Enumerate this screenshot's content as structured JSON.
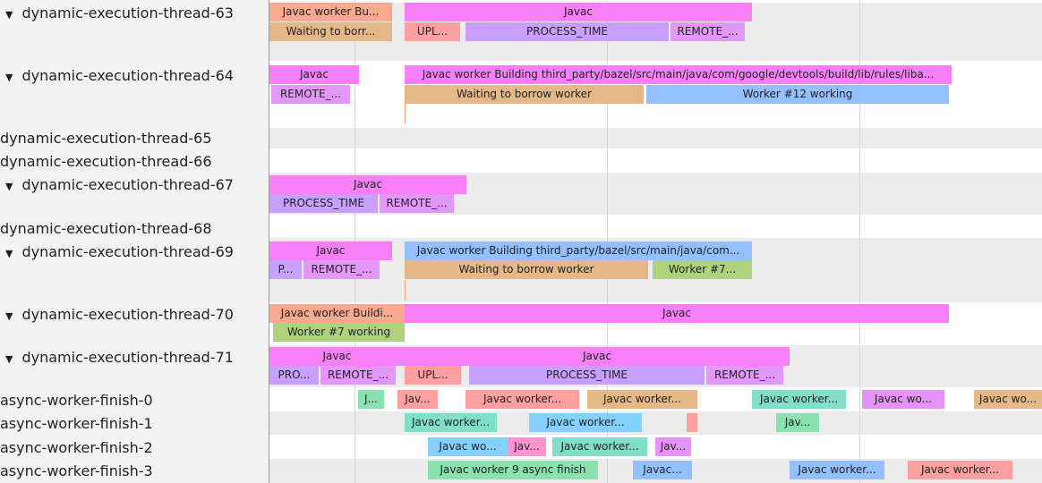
{
  "tracks": [
    {
      "label": "dynamic-execution-thread-63",
      "expanded": true
    },
    {
      "label": "dynamic-execution-thread-64",
      "expanded": true
    },
    {
      "label": "dynamic-execution-thread-65",
      "expanded": false
    },
    {
      "label": "dynamic-execution-thread-66",
      "expanded": false
    },
    {
      "label": "dynamic-execution-thread-67",
      "expanded": true
    },
    {
      "label": "dynamic-execution-thread-68",
      "expanded": false
    },
    {
      "label": "dynamic-execution-thread-69",
      "expanded": true
    },
    {
      "label": "dynamic-execution-thread-70",
      "expanded": true
    },
    {
      "label": "dynamic-execution-thread-71",
      "expanded": true
    },
    {
      "label": "async-worker-finish-0",
      "expanded": false
    },
    {
      "label": "async-worker-finish-1",
      "expanded": false
    },
    {
      "label": "async-worker-finish-2",
      "expanded": false
    },
    {
      "label": "async-worker-finish-3",
      "expanded": false
    }
  ],
  "expand_glyph": "▼",
  "slices": [
    {
      "t": "Javac worker Bu...",
      "c": "#f9a98f"
    },
    {
      "t": "Javac",
      "c": "#f97ff9"
    },
    {
      "t": "Waiting to borr...",
      "c": "#e5b887"
    },
    {
      "t": "UPL...",
      "c": "#ff9f9f"
    },
    {
      "t": "PROCESS_TIME",
      "c": "#c9a0ff"
    },
    {
      "t": "REMOTE_...",
      "c": "#e397f9"
    },
    {
      "t": "Javac",
      "c": "#f97ff9"
    },
    {
      "t": "Javac worker Building third_party/bazel/src/main/java/com/google/devtools/build/lib/rules/liba...",
      "c": "#f97ff9"
    },
    {
      "t": "REMOTE_...",
      "c": "#e397f9"
    },
    {
      "t": "Waiting to borrow worker",
      "c": "#e5b887"
    },
    {
      "t": "Worker #12 working",
      "c": "#94c0ff"
    },
    {
      "t": "Javac",
      "c": "#f97ff9"
    },
    {
      "t": "PROCESS_TIME",
      "c": "#c9a0ff"
    },
    {
      "t": "REMOTE_...",
      "c": "#e397f9"
    },
    {
      "t": "Javac",
      "c": "#f97ff9"
    },
    {
      "t": "Javac worker Building third_party/bazel/src/main/java/com...",
      "c": "#94c0ff"
    },
    {
      "t": "P...",
      "c": "#c9a0ff"
    },
    {
      "t": "REMOTE_...",
      "c": "#e397f9"
    },
    {
      "t": "Waiting to borrow worker",
      "c": "#e5b887"
    },
    {
      "t": "Worker #7...",
      "c": "#add47c"
    },
    {
      "t": "Javac worker Buildi...",
      "c": "#f9a98f"
    },
    {
      "t": "Javac",
      "c": "#f97ff9"
    },
    {
      "t": "Worker #7 working",
      "c": "#add47c"
    },
    {
      "t": "Javac",
      "c": "#f97ff9"
    },
    {
      "t": "Javac",
      "c": "#f97ff9"
    },
    {
      "t": "PRO...",
      "c": "#c9a0ff"
    },
    {
      "t": "REMOTE_...",
      "c": "#e397f9"
    },
    {
      "t": "UPL...",
      "c": "#ff9f9f"
    },
    {
      "t": "PROCESS_TIME",
      "c": "#c9a0ff"
    },
    {
      "t": "REMOTE_...",
      "c": "#e397f9"
    },
    {
      "t": "J...",
      "c": "#89e2b0"
    },
    {
      "t": "Jav...",
      "c": "#ff9f9f"
    },
    {
      "t": "Javac worker...",
      "c": "#ff9f9f"
    },
    {
      "t": "Javac worker...",
      "c": "#e5b887"
    },
    {
      "t": "Javac worker...",
      "c": "#80dfc9"
    },
    {
      "t": "Javac wo...",
      "c": "#e592f9"
    },
    {
      "t": "Javac wo...",
      "c": "#e5b887"
    },
    {
      "t": "Javac worker...",
      "c": "#80dfc9"
    },
    {
      "t": "Javac worker...",
      "c": "#84d1ff"
    },
    {
      "t": "",
      "c": "#ff9f9f"
    },
    {
      "t": "Jav...",
      "c": "#89e2b0"
    },
    {
      "t": "Javac wo...",
      "c": "#84d1ff"
    },
    {
      "t": "Jav...",
      "c": "#ff94d1"
    },
    {
      "t": "Javac worker...",
      "c": "#80dfc9"
    },
    {
      "t": "Jav...",
      "c": "#e592f9"
    },
    {
      "t": "Javac worker 9 async finish",
      "c": "#89e2b0"
    },
    {
      "t": "Javac...",
      "c": "#94c0ff"
    },
    {
      "t": "Javac worker...",
      "c": "#94c0ff"
    },
    {
      "t": "Javac worker...",
      "c": "#ff9f9f"
    }
  ]
}
